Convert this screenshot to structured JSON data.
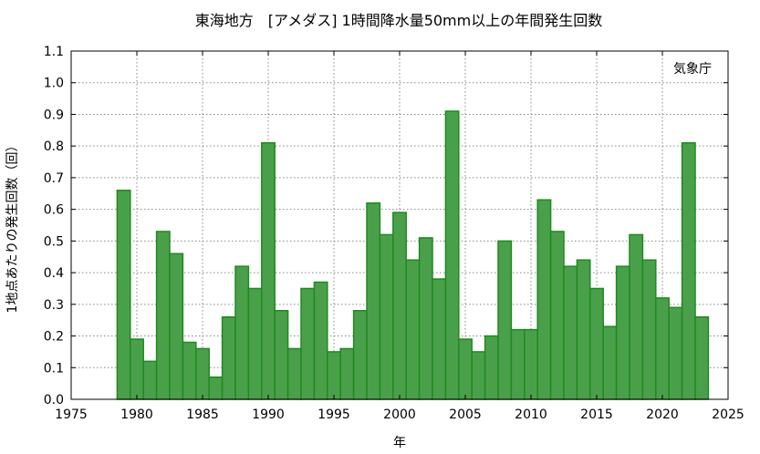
{
  "chart_data": {
    "type": "bar",
    "title": "東海地方　[アメダス] 1時間降水量50mm以上の年間発生回数",
    "xlabel": "年",
    "ylabel": "1地点あたりの発生回数（回）",
    "source_label": "気象庁",
    "xlim": [
      1975,
      2025
    ],
    "ylim": [
      0,
      1.1
    ],
    "xticks": [
      "1975",
      "1980",
      "1985",
      "1990",
      "1995",
      "2000",
      "2005",
      "2010",
      "2015",
      "2020",
      "2025"
    ],
    "yticks": [
      "0.0",
      "0.1",
      "0.2",
      "0.3",
      "0.4",
      "0.5",
      "0.6",
      "0.7",
      "0.8",
      "0.9",
      "1.0",
      "1.1"
    ],
    "grid": true,
    "bar_color": "#4aa04a",
    "bar_edge_color": "#1f8a1f",
    "categories": [
      1979,
      1980,
      1981,
      1982,
      1983,
      1984,
      1985,
      1986,
      1987,
      1988,
      1989,
      1990,
      1991,
      1992,
      1993,
      1994,
      1995,
      1996,
      1997,
      1998,
      1999,
      2000,
      2001,
      2002,
      2003,
      2004,
      2005,
      2006,
      2007,
      2008,
      2009,
      2010,
      2011,
      2012,
      2013,
      2014,
      2015,
      2016,
      2017,
      2018,
      2019,
      2020,
      2021,
      2022,
      2023
    ],
    "values": [
      0.66,
      0.19,
      0.12,
      0.53,
      0.46,
      0.18,
      0.16,
      0.07,
      0.26,
      0.42,
      0.35,
      0.81,
      0.28,
      0.16,
      0.35,
      0.37,
      0.15,
      0.16,
      0.28,
      0.62,
      0.52,
      0.59,
      0.44,
      0.51,
      0.38,
      0.91,
      0.19,
      0.15,
      0.2,
      0.5,
      0.22,
      0.22,
      0.63,
      0.53,
      0.42,
      0.44,
      0.35,
      0.23,
      0.42,
      0.52,
      0.44,
      0.32,
      0.29,
      0.81,
      0.26
    ]
  }
}
